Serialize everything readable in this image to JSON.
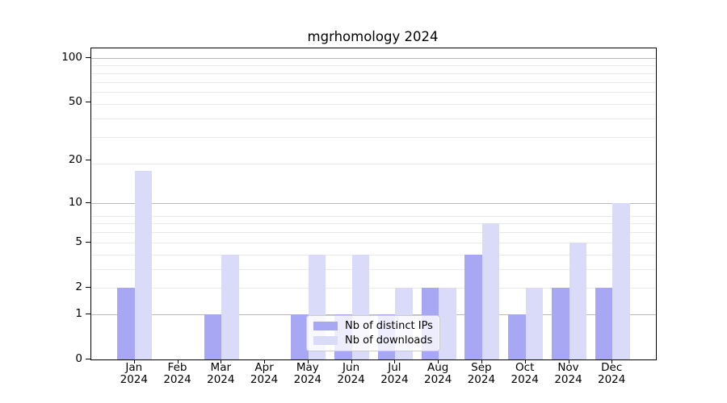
{
  "title": "mgrhomology 2024",
  "chart_data": {
    "type": "bar",
    "title": "mgrhomology 2024",
    "categories": [
      "Jan",
      "Feb",
      "Mar",
      "Apr",
      "May",
      "Jun",
      "Jul",
      "Aug",
      "Sep",
      "Oct",
      "Nov",
      "Dec"
    ],
    "year_suffix": "2024",
    "series": [
      {
        "name": "Nb of distinct IPs",
        "color": "#a7a7f3",
        "values": [
          2,
          0,
          1,
          0,
          1,
          1,
          1,
          2,
          4,
          1,
          2,
          2
        ]
      },
      {
        "name": "Nb of downloads",
        "color": "#dadaf9",
        "values": [
          17,
          0,
          4,
          0,
          4,
          4,
          2,
          2,
          7,
          2,
          5,
          10
        ]
      }
    ],
    "xlabel": "",
    "ylabel": "",
    "y_scale": "log1p",
    "y_ticks": [
      0,
      1,
      2,
      5,
      10,
      20,
      50,
      100
    ],
    "y_major_gridlines": [
      1,
      10,
      100
    ],
    "ylim": [
      0,
      116
    ],
    "grid": true,
    "legend_position": "inside-lower-center"
  },
  "colors": {
    "major_grid": "#b9b9b9",
    "minor_grid": "#e9e9e9",
    "spine": "#000000",
    "background": "#ffffff"
  }
}
